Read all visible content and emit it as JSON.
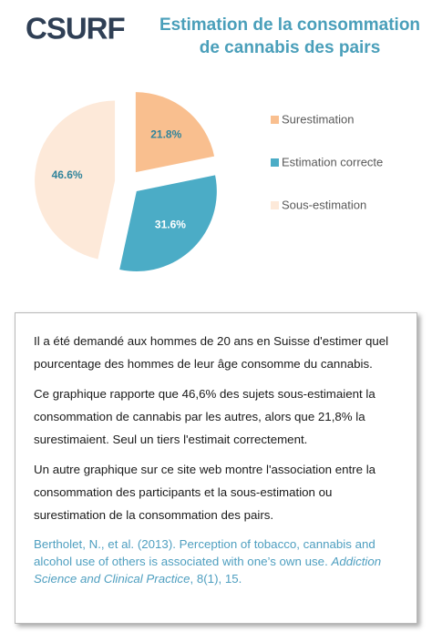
{
  "logo": "CSURF",
  "chart_data": {
    "type": "pie",
    "title": [
      "Estimation de  la consommation",
      "de cannabis des pairs"
    ],
    "categories": [
      "Surestimation",
      "Estimation correcte",
      "Sous-estimation"
    ],
    "values": [
      21.8,
      31.6,
      46.6
    ],
    "value_labels": [
      "21.8%",
      "31.6%",
      "46.6%"
    ],
    "colors": [
      "#f9bf8f",
      "#4bacc6",
      "#fde9d9"
    ],
    "legend": "right"
  },
  "text": {
    "paragraphs": [
      "Il a  été demandé aux hommes de 20 ans en Suisse d'estimer quel pourcentage des hommes de leur âge consomme du cannabis.",
      "Ce graphique rapporte que 46,6% des sujets sous-estimaient la consommation de cannabis par les autres, alors que 21,8% la surestimaient. Seul un tiers l'estimait correctement.",
      "Un autre graphique sur ce site web montre l'association entre la consommation des participants et la sous-estimation ou surestimation de la consommation des pairs."
    ],
    "citation": {
      "before": "Bertholet, N., et al. (2013).  Perception of tobacco, cannabis and alcohol use of others is associated with one’s own use. ",
      "journal": "Addiction Science and Clinical Practice",
      "after": ", 8(1), 15."
    }
  }
}
